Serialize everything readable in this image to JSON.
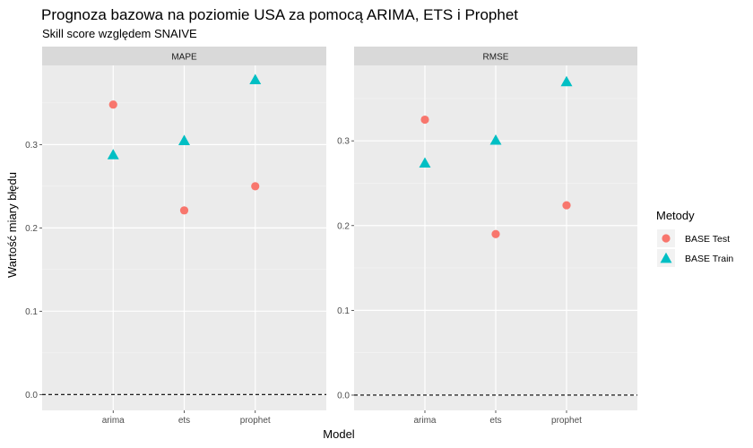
{
  "chart_data": {
    "type": "scatter",
    "title": "Prognoza bazowa na poziomie USA za pomocą ARIMA, ETS i Prophet",
    "subtitle": "Skill score względem SNAIVE",
    "xlabel": "Model",
    "ylabel": "Wartość miary błędu",
    "categories": [
      "arima",
      "ets",
      "prophet"
    ],
    "reference_line": {
      "y": 0,
      "style": "dashed"
    },
    "legend": {
      "title": "Metody",
      "placement": "right",
      "entries": [
        {
          "name": "BASE Test",
          "color": "#F8766D",
          "shape": "circle"
        },
        {
          "name": "BASE Train",
          "color": "#00BFC4",
          "shape": "triangle"
        }
      ]
    },
    "panels": [
      {
        "name": "MAPE",
        "ylim": [
          -0.019,
          0.395
        ],
        "yticks": [
          0.0,
          0.1,
          0.2,
          0.3
        ],
        "ytick_labels": [
          "0.0",
          "0.1",
          "0.2",
          "0.3"
        ],
        "series": [
          {
            "name": "BASE Test",
            "values": [
              0.348,
              0.221,
              0.25
            ]
          },
          {
            "name": "BASE Train",
            "values": [
              0.287,
              0.304,
              0.377
            ]
          }
        ]
      },
      {
        "name": "RMSE",
        "ylim": [
          -0.018,
          0.389
        ],
        "yticks": [
          0.0,
          0.1,
          0.2,
          0.3
        ],
        "ytick_labels": [
          "0.0",
          "0.1",
          "0.2",
          "0.3"
        ],
        "series": [
          {
            "name": "BASE Test",
            "values": [
              0.325,
              0.19,
              0.224
            ]
          },
          {
            "name": "BASE Train",
            "values": [
              0.273,
              0.3,
              0.369
            ]
          }
        ]
      }
    ]
  }
}
